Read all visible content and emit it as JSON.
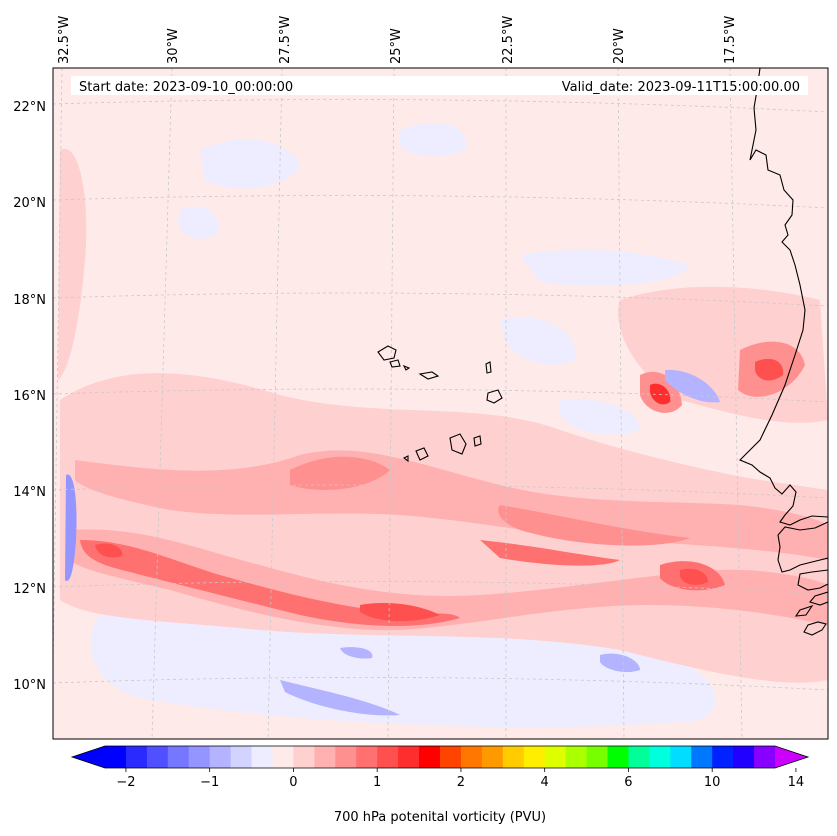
{
  "map": {
    "projection": "conic",
    "extent": {
      "lon_min": -33.0,
      "lon_max": -15.0,
      "lat_min": 9.0,
      "lat_max": 22.8
    },
    "lon_ticks": [
      {
        "value": -32.5,
        "label": "32.5°W"
      },
      {
        "value": -30.0,
        "label": "30°W"
      },
      {
        "value": -27.5,
        "label": "27.5°W"
      },
      {
        "value": -25.0,
        "label": "25°W"
      },
      {
        "value": -22.5,
        "label": "22.5°W"
      },
      {
        "value": -20.0,
        "label": "20°W"
      },
      {
        "value": -17.5,
        "label": "17.5°W"
      }
    ],
    "lat_ticks": [
      {
        "value": 22,
        "label": "22°N"
      },
      {
        "value": 20,
        "label": "20°N"
      },
      {
        "value": 18,
        "label": "18°N"
      },
      {
        "value": 16,
        "label": "16°N"
      },
      {
        "value": 14,
        "label": "14°N"
      },
      {
        "value": 12,
        "label": "12°N"
      },
      {
        "value": 10,
        "label": "10°N"
      }
    ],
    "start_date": "Start date: 2023-09-10_00:00:00",
    "valid_date": "Valid_date: 2023-09-11T15:00:00.00",
    "features": [
      "Cape Verde Islands",
      "West African coastline"
    ]
  },
  "colorbar": {
    "label": "700 hPa potenital vorticity (PVU)",
    "tick_labels": [
      "−2",
      "−1",
      "0",
      "1",
      "2",
      "4",
      "6",
      "10",
      "14"
    ],
    "colors": [
      "#0000ff",
      "#2a2aff",
      "#5050ff",
      "#7676ff",
      "#9595ff",
      "#b3b3ff",
      "#d3d3ff",
      "#ededff",
      "#ffeaea",
      "#ffd0d0",
      "#ffb1b1",
      "#ff9090",
      "#ff7070",
      "#ff5050",
      "#ff2e2e",
      "#ff0000",
      "#ff4400",
      "#ff7700",
      "#ff9900",
      "#ffcc00",
      "#ffee00",
      "#ddff00",
      "#aaff00",
      "#77ff00",
      "#00ff00",
      "#00ff99",
      "#00ffdd",
      "#00ddff",
      "#0077ff",
      "#0022ff",
      "#2200ff",
      "#8800ff"
    ],
    "under_color": "#0000ff",
    "over_color": "#cc00ff"
  },
  "pv_features": {
    "background_value": 0.1,
    "bands": [
      {
        "name": "main positive PV band",
        "value": 1.5,
        "lon_start": -32.0,
        "lon_end": -16.0,
        "lat_center": 12.2
      },
      {
        "name": "northern positive PV band",
        "value": 0.8,
        "lon_start": -32.0,
        "lon_end": -18.0,
        "lat_center": 14.0
      }
    ],
    "maxima": [
      {
        "lon": -19.8,
        "lat": 16.1,
        "value": 2.0
      },
      {
        "lon": -17.3,
        "lat": 16.5,
        "value": 1.6
      },
      {
        "lon": -19.2,
        "lat": 12.3,
        "value": 1.4
      },
      {
        "lon": -25.0,
        "lat": 11.4,
        "value": 1.6
      },
      {
        "lon": -31.2,
        "lat": 12.8,
        "value": 1.4
      }
    ],
    "minima": [
      {
        "lon": -32.3,
        "lat": 13.0,
        "value": -0.8
      },
      {
        "lon": -19.3,
        "lat": 15.6,
        "value": -0.6
      },
      {
        "lon": -26.5,
        "lat": 9.9,
        "value": -0.7
      }
    ]
  }
}
